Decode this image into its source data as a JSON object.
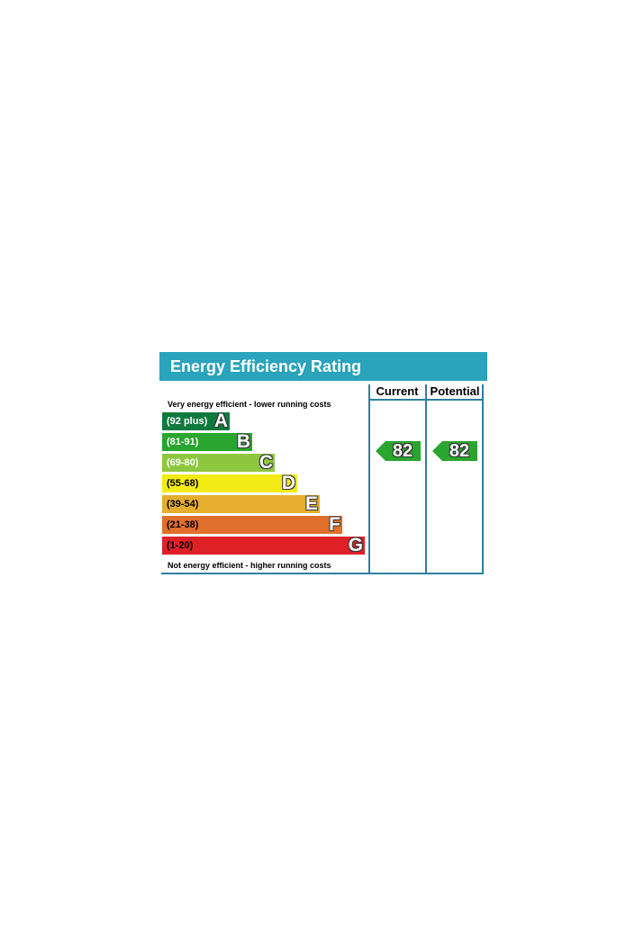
{
  "chart_data": {
    "type": "bar",
    "title": "Energy Efficiency Rating",
    "top_note": "Very energy efficient - lower running costs",
    "bottom_note": "Not energy efficient - higher running costs",
    "columns": [
      "Current",
      "Potential"
    ],
    "bands": [
      {
        "range": "(92 plus)",
        "letter": "A",
        "color": "#0f7a3d",
        "text_color": "#ffffff"
      },
      {
        "range": "(81-91)",
        "letter": "B",
        "color": "#2aa52f",
        "text_color": "#ffffff"
      },
      {
        "range": "(69-80)",
        "letter": "C",
        "color": "#8dc73f",
        "text_color": "#ffffff"
      },
      {
        "range": "(55-68)",
        "letter": "D",
        "color": "#f2eb14",
        "text_color": "#000000"
      },
      {
        "range": "(39-54)",
        "letter": "E",
        "color": "#e5ae2f",
        "text_color": "#000000"
      },
      {
        "range": "(21-38)",
        "letter": "F",
        "color": "#e06f2c",
        "text_color": "#000000"
      },
      {
        "range": "(1-20)",
        "letter": "G",
        "color": "#de2027",
        "text_color": "#000000"
      }
    ],
    "current": {
      "value": 82,
      "band": "B",
      "color": "#2aa52f"
    },
    "potential": {
      "value": 82,
      "band": "B",
      "color": "#2aa52f"
    }
  }
}
